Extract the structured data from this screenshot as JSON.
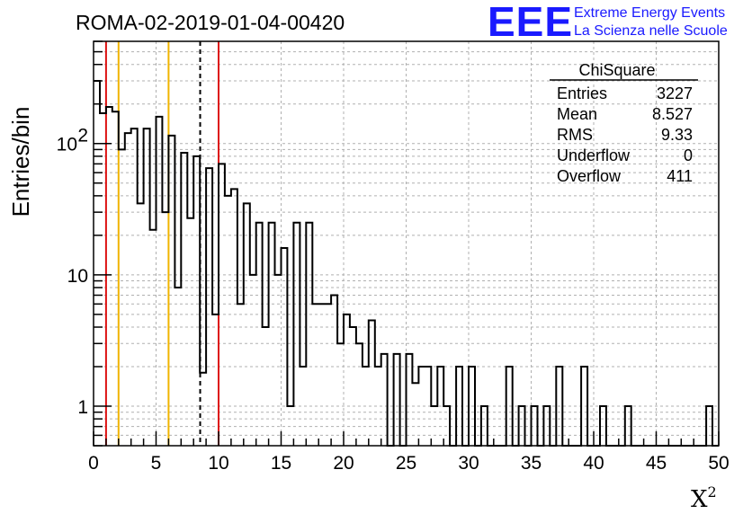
{
  "chart_data": {
    "type": "bar",
    "style": "step-histogram",
    "title": "ROMA-02-2019-01-04-00420",
    "xlabel": "X",
    "xlabel_sup": "2",
    "ylabel": "Entries/bin",
    "xlim": [
      0,
      50
    ],
    "ylim": [
      0.5,
      600
    ],
    "log_y": true,
    "grid": true,
    "bin_width": 0.5,
    "x_ticks": [
      0,
      5,
      10,
      15,
      20,
      25,
      30,
      35,
      40,
      45,
      50
    ],
    "y_ticks": [
      {
        "value": 1,
        "label": "1"
      },
      {
        "value": 10,
        "label": "10"
      },
      {
        "value": 100,
        "label": "10",
        "sup": "2"
      }
    ],
    "values": [
      300,
      170,
      190,
      175,
      90,
      120,
      130,
      35,
      130,
      22,
      160,
      30,
      115,
      8,
      85,
      27,
      80,
      1.8,
      65,
      5,
      70,
      40,
      45,
      6,
      35,
      10,
      25,
      4,
      25,
      10,
      16,
      1,
      25,
      2,
      25,
      6,
      6,
      6,
      7,
      3,
      5,
      4,
      3,
      2,
      4.5,
      2,
      2.5,
      0.5,
      2.5,
      0.5,
      2.5,
      1.5,
      2,
      2,
      1,
      2,
      1,
      0.5,
      2,
      0.5,
      2,
      0.5,
      1,
      0.5,
      0.5,
      0.5,
      2,
      0.5,
      1,
      0.5,
      1,
      0.5,
      1,
      0.5,
      2,
      0.5,
      0.5,
      0.5,
      2,
      0.5,
      0.5,
      1,
      0.5,
      0.5,
      0.5,
      1,
      0.5,
      0.5,
      0.5,
      0.5,
      0.5,
      0.5,
      0.5,
      0.5,
      0.5,
      0.5,
      0.5,
      0.5,
      1,
      0.5
    ],
    "vertical_lines": [
      {
        "x": 1,
        "color": "#dd1111",
        "style": "solid"
      },
      {
        "x": 2,
        "color": "#f0b400",
        "style": "solid"
      },
      {
        "x": 6,
        "color": "#f0b400",
        "style": "solid"
      },
      {
        "x": 8.527,
        "color": "#000000",
        "style": "dashed"
      },
      {
        "x": 10,
        "color": "#dd1111",
        "style": "solid"
      }
    ],
    "stats": {
      "name": "ChiSquare",
      "rows": [
        {
          "label": "Entries",
          "value": "3227"
        },
        {
          "label": "Mean",
          "value": "8.527"
        },
        {
          "label": "RMS",
          "value": "9.33"
        },
        {
          "label": "Underflow",
          "value": "0"
        },
        {
          "label": "Overflow",
          "value": "411"
        }
      ]
    }
  },
  "logo": {
    "big": "EEE",
    "line1": "Extreme Energy Events",
    "line2": "La Scienza nelle Scuole",
    "color": "#1a1aff"
  }
}
